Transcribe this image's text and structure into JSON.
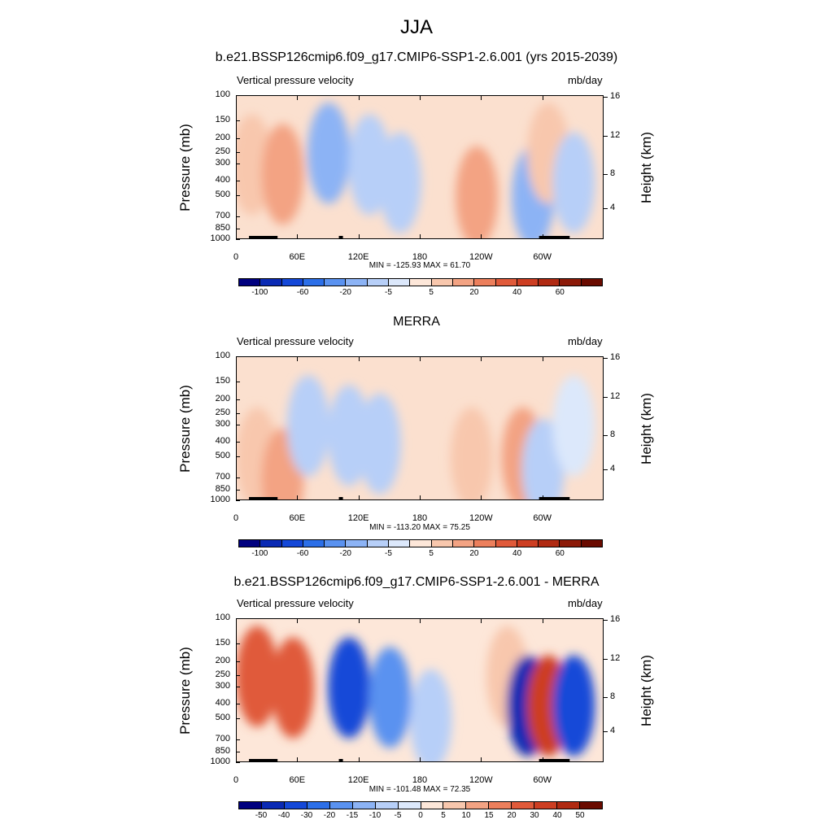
{
  "page": {
    "title": "JJA"
  },
  "chart_data": [
    {
      "type": "heatmap",
      "title": "b.e21.BSSP126cmip6.f09_g17.CMIP6-SSP1-2.6.001 (yrs 2015-2039)",
      "left_label": "Vertical pressure velocity",
      "right_label": "mb/day",
      "ylabel": "Pressure (mb)",
      "ylabel_right": "Height (km)",
      "y_ticks": [
        "100",
        "150",
        "200",
        "250",
        "300",
        "400",
        "500",
        "700",
        "850",
        "1000"
      ],
      "y_ticks_right": [
        "16",
        "12",
        "8",
        "4"
      ],
      "x_ticks": [
        "0",
        "60E",
        "120E",
        "180",
        "120W",
        "60W"
      ],
      "stats": "MIN = -125.93  MAX =  61.70",
      "colorbar_labels": [
        "-100",
        "-60",
        "-20",
        "-5",
        "5",
        "20",
        "40",
        "60"
      ],
      "colorbar_colors": [
        "#00007f",
        "#0a2ab4",
        "#1448d8",
        "#2c6fe8",
        "#5a92f0",
        "#8cb3f5",
        "#b7cff8",
        "#dce8fb",
        "#fde7d9",
        "#f8c7ad",
        "#f3a383",
        "#ec7f5c",
        "#e05a3a",
        "#cd3e22",
        "#b02a12",
        "#8c1a08",
        "#6a0b00"
      ],
      "regions": [
        {
          "lon": 15,
          "p": 300,
          "value": 20
        },
        {
          "lon": 45,
          "p": 350,
          "value": 40
        },
        {
          "lon": 90,
          "p": 250,
          "value": -60
        },
        {
          "lon": 130,
          "p": 300,
          "value": -40
        },
        {
          "lon": 160,
          "p": 400,
          "value": -20
        },
        {
          "lon": 235,
          "p": 500,
          "value": 40
        },
        {
          "lon": 290,
          "p": 500,
          "value": -60
        },
        {
          "lon": 305,
          "p": 250,
          "value": 20
        },
        {
          "lon": 330,
          "p": 400,
          "value": -20
        }
      ]
    },
    {
      "type": "heatmap",
      "title": "MERRA",
      "left_label": "Vertical pressure velocity",
      "right_label": "mb/day",
      "ylabel": "Pressure (mb)",
      "ylabel_right": "Height (km)",
      "y_ticks": [
        "100",
        "150",
        "200",
        "250",
        "300",
        "400",
        "500",
        "700",
        "850",
        "1000"
      ],
      "y_ticks_right": [
        "16",
        "12",
        "8",
        "4"
      ],
      "x_ticks": [
        "0",
        "60E",
        "120E",
        "180",
        "120W",
        "60W"
      ],
      "stats": "MIN = -113.20  MAX =  75.25",
      "colorbar_labels": [
        "-100",
        "-60",
        "-20",
        "-5",
        "5",
        "20",
        "40",
        "60"
      ],
      "colorbar_colors": [
        "#00007f",
        "#0a2ab4",
        "#1448d8",
        "#2c6fe8",
        "#5a92f0",
        "#8cb3f5",
        "#b7cff8",
        "#dce8fb",
        "#fde7d9",
        "#f8c7ad",
        "#f3a383",
        "#ec7f5c",
        "#e05a3a",
        "#cd3e22",
        "#b02a12",
        "#8c1a08",
        "#6a0b00"
      ],
      "regions": [
        {
          "lon": 20,
          "p": 500,
          "value": 20
        },
        {
          "lon": 45,
          "p": 700,
          "value": 40
        },
        {
          "lon": 70,
          "p": 300,
          "value": -40
        },
        {
          "lon": 110,
          "p": 350,
          "value": -40
        },
        {
          "lon": 140,
          "p": 400,
          "value": -40
        },
        {
          "lon": 230,
          "p": 500,
          "value": 20
        },
        {
          "lon": 280,
          "p": 500,
          "value": 40
        },
        {
          "lon": 300,
          "p": 600,
          "value": -40
        },
        {
          "lon": 330,
          "p": 300,
          "value": -5
        }
      ]
    },
    {
      "type": "heatmap",
      "title": "b.e21.BSSP126cmip6.f09_g17.CMIP6-SSP1-2.6.001 - MERRA",
      "left_label": "Vertical pressure velocity",
      "right_label": "mb/day",
      "ylabel": "Pressure (mb)",
      "ylabel_right": "Height (km)",
      "y_ticks": [
        "100",
        "150",
        "200",
        "250",
        "300",
        "400",
        "500",
        "700",
        "850",
        "1000"
      ],
      "y_ticks_right": [
        "16",
        "12",
        "8",
        "4"
      ],
      "x_ticks": [
        "0",
        "60E",
        "120E",
        "180",
        "120W",
        "60W"
      ],
      "stats": "MIN = -101.48  MAX =  72.35",
      "colorbar_labels": [
        "-50",
        "-40",
        "-30",
        "-20",
        "-15",
        "-10",
        "-5",
        "0",
        "5",
        "10",
        "15",
        "20",
        "30",
        "40",
        "50"
      ],
      "colorbar_colors": [
        "#00007f",
        "#0a2ab4",
        "#1448d8",
        "#2c6fe8",
        "#5a92f0",
        "#8cb3f5",
        "#b7cff8",
        "#dce8fb",
        "#fde7d9",
        "#f8c7ad",
        "#f3a383",
        "#ec7f5c",
        "#e05a3a",
        "#cd3e22",
        "#b02a12",
        "#6a0b00"
      ],
      "regions": [
        {
          "lon": 20,
          "p": 250,
          "value": 30
        },
        {
          "lon": 55,
          "p": 300,
          "value": 30
        },
        {
          "lon": 110,
          "p": 300,
          "value": -30
        },
        {
          "lon": 150,
          "p": 350,
          "value": -15
        },
        {
          "lon": 190,
          "p": 500,
          "value": -5
        },
        {
          "lon": 265,
          "p": 250,
          "value": 10
        },
        {
          "lon": 285,
          "p": 400,
          "value": -40
        },
        {
          "lon": 305,
          "p": 400,
          "value": 40
        },
        {
          "lon": 330,
          "p": 400,
          "value": -30
        }
      ]
    }
  ]
}
